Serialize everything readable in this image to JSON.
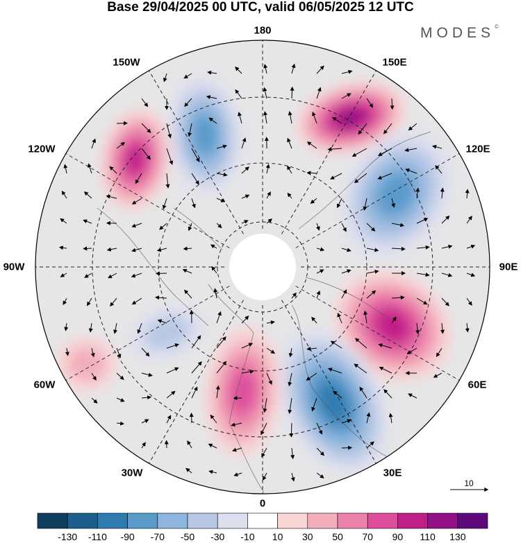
{
  "title": "Base 29/04/2025 00 UTC, valid 06/05/2025 12 UTC",
  "brand": "MODES",
  "brand_mark": "©",
  "longitude_labels": {
    "lon_180": "180",
    "lon_150e": "150E",
    "lon_120e": "120E",
    "lon_90e": "90E",
    "lon_60e": "60E",
    "lon_30e": "30E",
    "lon_0": "0",
    "lon_30w": "30W",
    "lon_60w": "60W",
    "lon_90w": "90W",
    "lon_120w": "120W",
    "lon_150w": "150W"
  },
  "reference_vector_label": "10",
  "colorbar": {
    "ticks": [
      "-130",
      "-110",
      "-90",
      "-70",
      "-50",
      "-30",
      "-10",
      "10",
      "30",
      "50",
      "70",
      "90",
      "110",
      "130"
    ],
    "colors": [
      "#0e3d5e",
      "#1d5f8c",
      "#2f7bb0",
      "#5a9acb",
      "#8eb5dd",
      "#b8c8e4",
      "#dcdeee",
      "#ffffff",
      "#f7d5d5",
      "#f2aeba",
      "#ec82aa",
      "#dd4f9c",
      "#c01f88",
      "#901085",
      "#5e0a7a"
    ]
  },
  "map_data": {
    "projection": "north-polar-stereographic",
    "field": "anomaly",
    "pole_mask_color": "#ffffff",
    "outside_color": "#e6e6e8",
    "anomaly_centers": [
      {
        "name": "pos-150e-pacific",
        "sign": "positive",
        "peak": 110
      },
      {
        "name": "neg-120e-siberia",
        "sign": "negative",
        "peak": -70
      },
      {
        "name": "pos-70e-siberia",
        "sign": "positive",
        "peak": 100
      },
      {
        "name": "neg-30e-europe",
        "sign": "negative",
        "peak": -90
      },
      {
        "name": "pos-10w-atlantic",
        "sign": "positive",
        "peak": 80
      },
      {
        "name": "neg-170w-pacific",
        "sign": "negative",
        "peak": -80
      },
      {
        "name": "pos-130w-pacific",
        "sign": "positive",
        "peak": 90
      },
      {
        "name": "neg-60w-atlantic",
        "sign": "negative",
        "peak": -40
      },
      {
        "name": "pos-60w-atlantic",
        "sign": "positive",
        "peak": 30
      }
    ]
  }
}
